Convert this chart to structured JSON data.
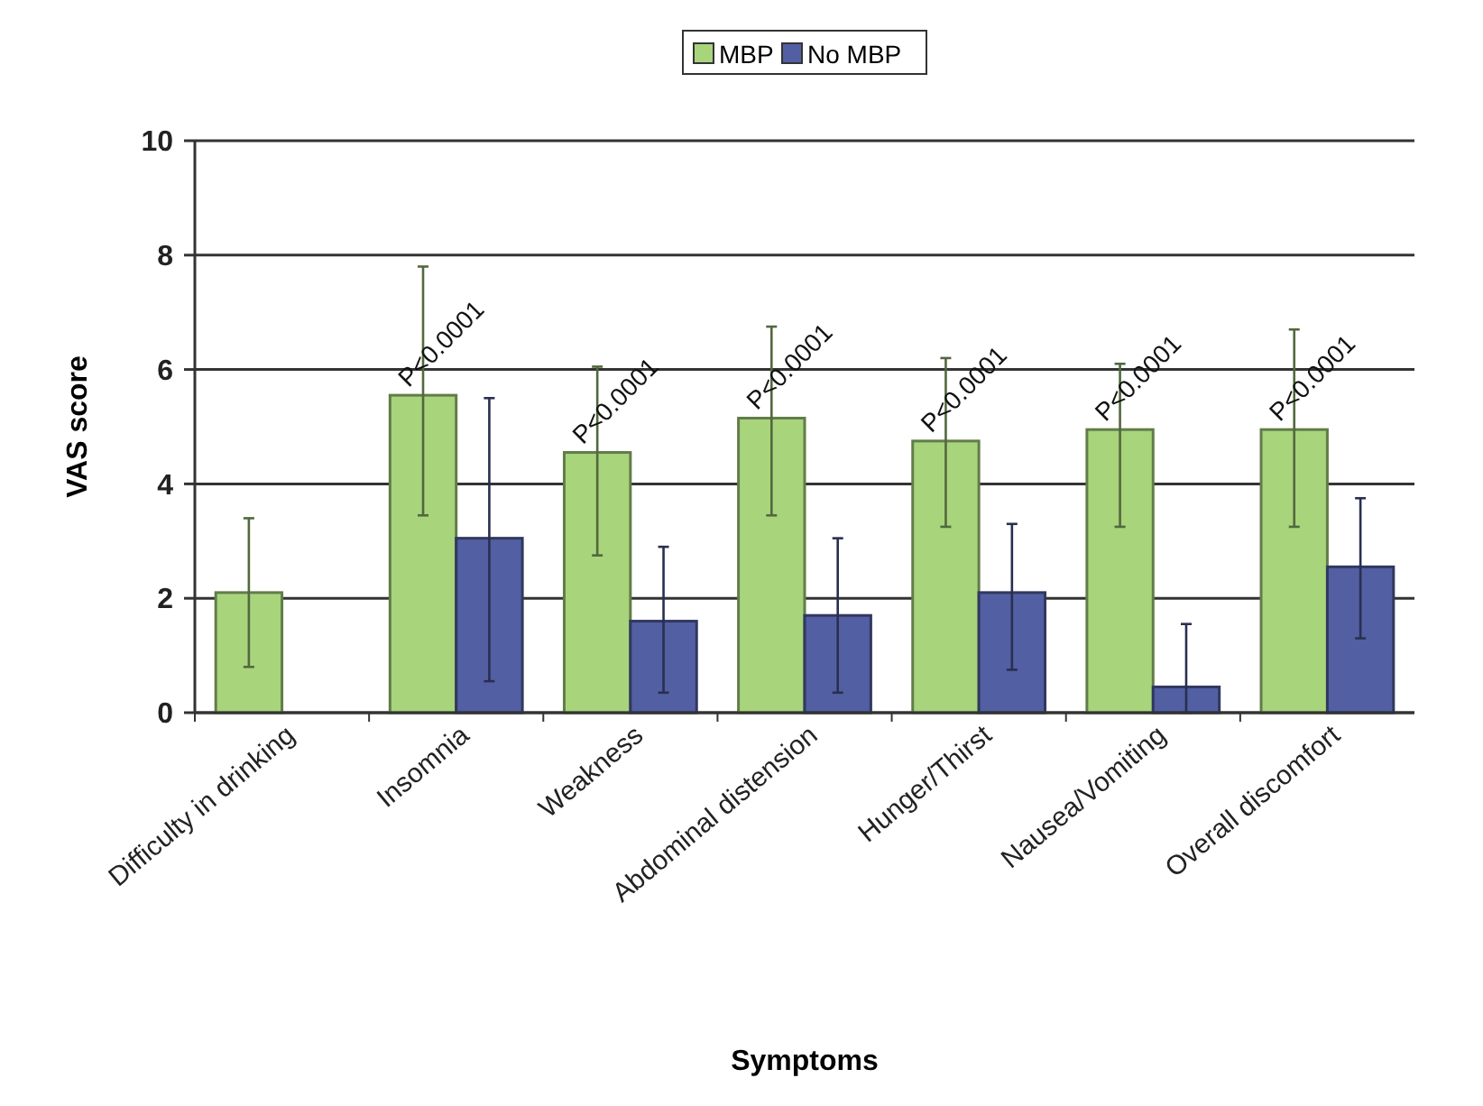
{
  "chart_data": {
    "type": "bar",
    "xlabel": "Symptoms",
    "ylabel": "VAS score",
    "categories": [
      "Difficulty in drinking",
      "Insomnia",
      "Weakness",
      "Abdominal distension",
      "Hunger/Thirst",
      "Nausea/Vomiting",
      "Overall discomfort"
    ],
    "series": [
      {
        "name": "MBP",
        "color": "#a8d47c",
        "values": [
          2.1,
          5.55,
          4.55,
          5.15,
          4.75,
          4.95,
          4.95
        ],
        "errors": [
          [
            0.8,
            3.4
          ],
          [
            3.45,
            7.8
          ],
          [
            2.75,
            6.05
          ],
          [
            3.45,
            6.75
          ],
          [
            3.25,
            6.2
          ],
          [
            3.25,
            6.1
          ],
          [
            3.25,
            6.7
          ]
        ]
      },
      {
        "name": "No MBP",
        "color": "#535fa3",
        "values": [
          null,
          3.05,
          1.6,
          1.7,
          2.1,
          0.45,
          2.55
        ],
        "errors": [
          null,
          [
            0.55,
            5.5
          ],
          [
            0.35,
            2.9
          ],
          [
            0.35,
            3.05
          ],
          [
            0.75,
            3.3
          ],
          [
            0,
            1.55
          ],
          [
            1.3,
            3.75
          ]
        ]
      }
    ],
    "ylim": [
      0,
      10
    ],
    "yticks": [
      0,
      2,
      4,
      6,
      8,
      10
    ],
    "grid": "y",
    "legend": "top",
    "annotations": [
      "P<0.0001",
      "P<0.0001",
      "P<0.0001",
      "P<0.0001",
      "P<0.0001",
      "P<0.0001"
    ]
  }
}
